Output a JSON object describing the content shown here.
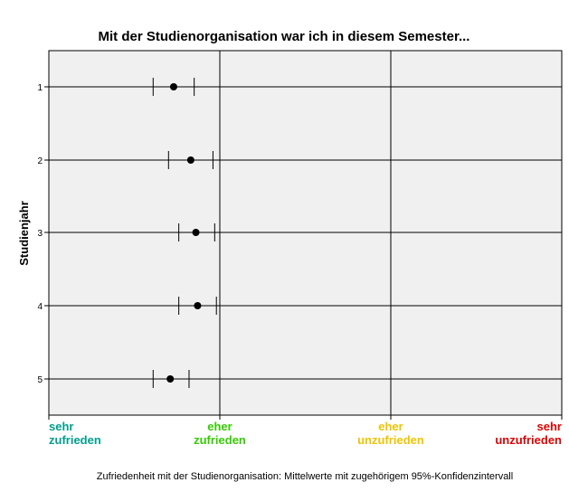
{
  "chart_data": {
    "type": "scatter",
    "title": "Mit der Studienorganisation war ich in diesem Semester...",
    "ylabel": "Studienjahr",
    "xlabel": "Zufriedenheit mit der Studienorganisation: Mittelwerte mit zugehörigem 95%-Konfidenzintervall",
    "xlim": [
      1,
      4
    ],
    "x_tick_values": [
      1,
      2,
      3,
      4
    ],
    "x_tick_labels": [
      {
        "line1": "sehr",
        "line2": "zufrieden",
        "color": "#009e8c"
      },
      {
        "line1": "eher",
        "line2": "zufrieden",
        "color": "#33cc00"
      },
      {
        "line1": "eher",
        "line2": "unzufrieden",
        "color": "#f2c300"
      },
      {
        "line1": "sehr",
        "line2": "unzufrieden",
        "color": "#e00000"
      }
    ],
    "categories": [
      "1",
      "2",
      "3",
      "4",
      "5"
    ],
    "means": [
      1.73,
      1.83,
      1.86,
      1.87,
      1.71
    ],
    "ci_lower": [
      1.61,
      1.7,
      1.76,
      1.76,
      1.61
    ],
    "ci_upper": [
      1.85,
      1.96,
      1.97,
      1.98,
      1.82
    ],
    "grid": true,
    "plot_background": "#f0f0f0"
  }
}
